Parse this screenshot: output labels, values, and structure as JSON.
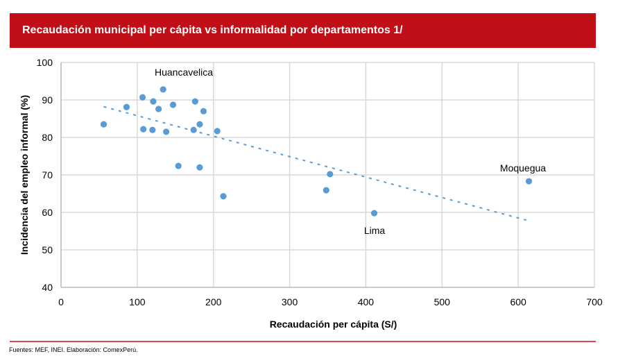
{
  "header": {
    "title": "Recaudación municipal per cápita vs informalidad por departamentos 1/"
  },
  "footer": {
    "source": "Fuentes: MEF, INEI. Elaboración: ComexPerú."
  },
  "colors": {
    "banner": "#c00f17",
    "marker": "#5b9bd5",
    "grid": "#d9d9d9",
    "rule": "#e0474c"
  },
  "chart_data": {
    "type": "scatter",
    "title": "Recaudación municipal per cápita vs informalidad por departamentos 1/",
    "xlabel": "Recaudación per cápita (S/)",
    "ylabel": "Incidencia del empleo informal (%)",
    "xlim": [
      0,
      700
    ],
    "ylim": [
      40,
      100
    ],
    "xticks": [
      "0",
      "100",
      "200",
      "300",
      "400",
      "500",
      "600",
      "700"
    ],
    "yticks": [
      "40",
      "50",
      "60",
      "70",
      "80",
      "90",
      "100"
    ],
    "grid": true,
    "points": [
      {
        "x": 56,
        "y": 83.5
      },
      {
        "x": 86,
        "y": 88.1
      },
      {
        "x": 107,
        "y": 90.7
      },
      {
        "x": 134,
        "y": 92.8
      },
      {
        "x": 121,
        "y": 89.6
      },
      {
        "x": 128,
        "y": 87.6
      },
      {
        "x": 147,
        "y": 88.7
      },
      {
        "x": 176,
        "y": 89.6
      },
      {
        "x": 187,
        "y": 87.0
      },
      {
        "x": 108,
        "y": 82.2
      },
      {
        "x": 120,
        "y": 82.0
      },
      {
        "x": 138,
        "y": 81.5
      },
      {
        "x": 174,
        "y": 82.0
      },
      {
        "x": 182,
        "y": 83.5
      },
      {
        "x": 205,
        "y": 81.7
      },
      {
        "x": 154,
        "y": 72.4
      },
      {
        "x": 182,
        "y": 72.0
      },
      {
        "x": 213,
        "y": 64.3
      },
      {
        "x": 353,
        "y": 70.2
      },
      {
        "x": 348,
        "y": 65.9
      },
      {
        "x": 411,
        "y": 59.8
      },
      {
        "x": 614,
        "y": 68.3
      }
    ],
    "trendline": {
      "x": [
        56,
        613
      ],
      "y": [
        88.2,
        57.8
      ],
      "style": "dashed"
    },
    "annotations": [
      {
        "text": "Huancavelica",
        "x": 134,
        "y": 92.8,
        "position": "above"
      },
      {
        "text": "Lima",
        "x": 411,
        "y": 59.8,
        "position": "below"
      },
      {
        "text": "Moquegua",
        "x": 614,
        "y": 68.3,
        "position": "above"
      }
    ]
  }
}
